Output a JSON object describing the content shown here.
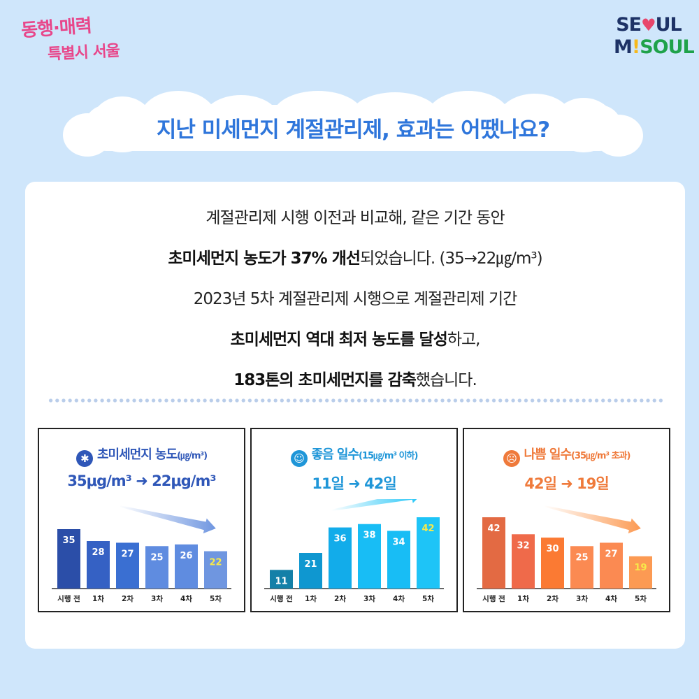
{
  "logo_left": {
    "line1": "동행·매력",
    "line2": "특별시 서울"
  },
  "logo_right": {
    "line1_a": "SE",
    "line1_b": "UL",
    "line2_a": "M",
    "line2_b": "!",
    "line2_c": "SOUL"
  },
  "title": "지난 미세먼지 계절관리제, 효과는 어땠나요?",
  "description": {
    "line1": "계절관리제 시행 이전과 비교해, 같은 기간 동안",
    "line2_bold": "초미세먼지 농도가 37% 개선",
    "line2_rest": "되었습니다. (35→22㎍/m³)",
    "line3": "2023년 5차 계절관리제 시행으로 계절관리제 기간",
    "line4_bold": "초미세먼지 역대 최저 농도를 달성",
    "line4_rest": "하고,",
    "line5_bold": "183톤의 초미세먼지를 감축",
    "line5_rest": "했습니다."
  },
  "panels": [
    {
      "title": "초미세먼지 농도",
      "unit": "(㎍/m³)",
      "summary": "35μg/m³  ➜  22μg/m³",
      "icon": "dust-icon"
    },
    {
      "title": "좋음 일수",
      "unit": "(15㎍/m³ 이하)",
      "summary": "11일 ➜ 42일",
      "icon": "smile-icon"
    },
    {
      "title": "나쁨 일수",
      "unit": "(35㎍/m³ 초과)",
      "summary": "42일 ➜ 19일",
      "icon": "frown-icon"
    }
  ],
  "colors": {
    "title_blue": "#2f76db",
    "panel1": "#2f57b8",
    "panel2": "#1f96d8",
    "panel3": "#ef7a3b",
    "highlight": "#f7e94a"
  },
  "chart_data": [
    {
      "type": "bar",
      "categories": [
        "시행 전",
        "1차",
        "2차",
        "3차",
        "4차",
        "5차"
      ],
      "values": [
        35,
        28,
        27,
        25,
        26,
        22
      ],
      "colors": [
        "#2b4ea8",
        "#3561c4",
        "#3a6fd2",
        "#5f8ce0",
        "#5f8ce0",
        "#6f96e0"
      ],
      "trend": "down",
      "title": "초미세먼지 농도(㎍/m³)"
    },
    {
      "type": "bar",
      "categories": [
        "시행 전",
        "1차",
        "2차",
        "3차",
        "4차",
        "5차"
      ],
      "values": [
        11,
        21,
        36,
        38,
        34,
        42
      ],
      "colors": [
        "#1480a8",
        "#0f97d0",
        "#12acea",
        "#18bdf5",
        "#18bdf5",
        "#1ec4f7"
      ],
      "trend": "up",
      "title": "좋음 일수(15㎍/m³ 이하)"
    },
    {
      "type": "bar",
      "categories": [
        "시행 전",
        "1차",
        "2차",
        "3차",
        "4차",
        "5차"
      ],
      "values": [
        42,
        32,
        30,
        25,
        27,
        19
      ],
      "colors": [
        "#e36a43",
        "#ef6a4a",
        "#fb7a33",
        "#fb8a52",
        "#fb8a52",
        "#fc9a53"
      ],
      "trend": "down",
      "title": "나쁨 일수(35㎍/m³ 초과)"
    }
  ]
}
